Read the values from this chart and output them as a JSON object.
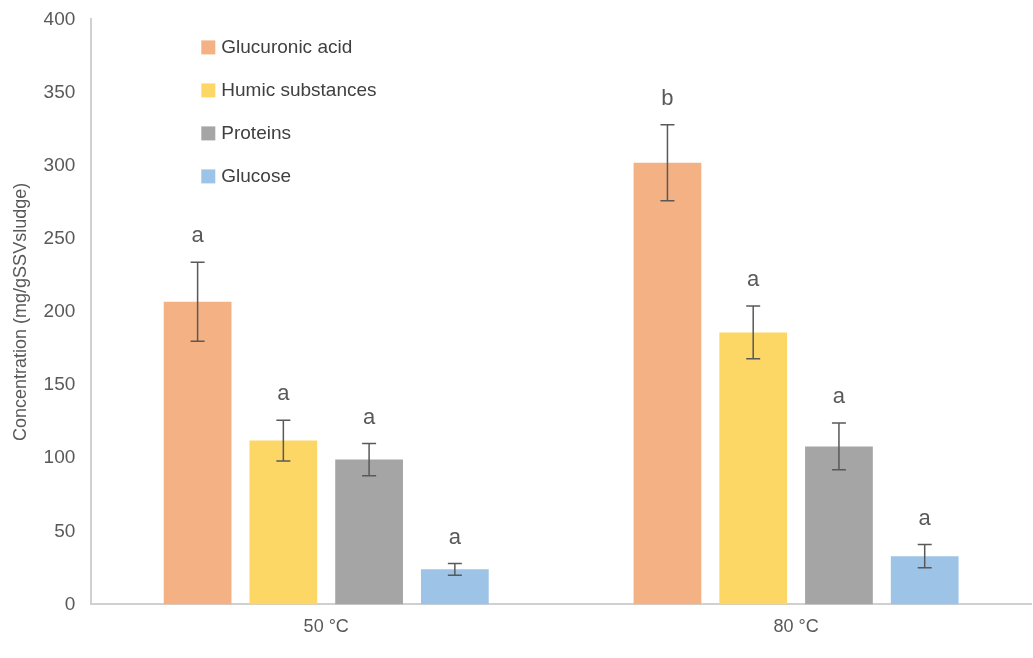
{
  "chart_data": {
    "type": "bar",
    "ylabel": "Concentration (mg/gSSVsludge)",
    "categories": [
      "50 °C",
      "80 °C"
    ],
    "series": [
      {
        "name": "Glucuronic acid",
        "color": "#f4b183",
        "values": [
          207,
          302
        ],
        "errors": [
          27,
          26
        ]
      },
      {
        "name": "Humic substances",
        "color": "#fcd766",
        "values": [
          112,
          186
        ],
        "errors": [
          14,
          18
        ]
      },
      {
        "name": "Proteins",
        "color": "#a5a5a5",
        "values": [
          99,
          108
        ],
        "errors": [
          11,
          16
        ]
      },
      {
        "name": "Glucose",
        "color": "#9dc3e6",
        "values": [
          24,
          33
        ],
        "errors": [
          4,
          8
        ]
      }
    ],
    "ylim": [
      0,
      400
    ],
    "yticks": [
      0,
      50,
      100,
      150,
      200,
      250,
      300,
      350,
      400
    ],
    "legend": "top left",
    "annotations": [
      "a",
      "a",
      "a",
      "a",
      "b",
      "a",
      "a",
      "a"
    ]
  }
}
